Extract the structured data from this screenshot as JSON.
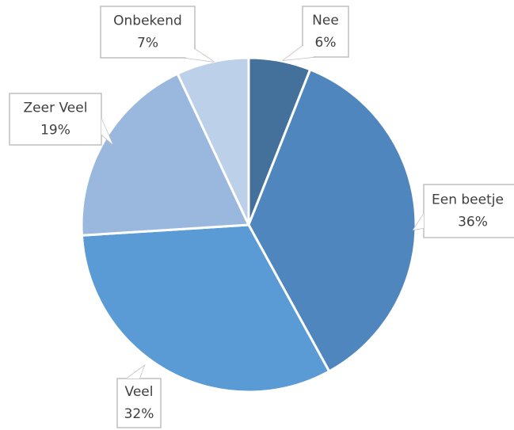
{
  "chart_data": {
    "type": "pie",
    "categories": [
      "Nee",
      "Een beetje",
      "Veel",
      "Zeer Veel",
      "Onbekend"
    ],
    "values": [
      6,
      36,
      32,
      19,
      7
    ],
    "value_labels": [
      "6%",
      "36%",
      "32%",
      "19%",
      "7%"
    ],
    "colors": [
      "#44719c",
      "#4f86bd",
      "#5b9bd5",
      "#9ab8de",
      "#bdd0ea"
    ]
  }
}
